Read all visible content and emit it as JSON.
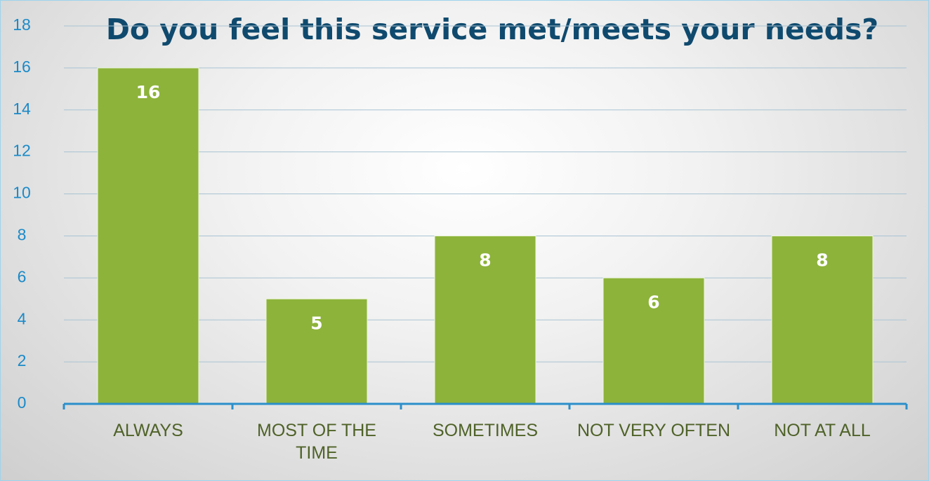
{
  "chart_data": {
    "type": "bar",
    "title": "Do you feel this service met/meets your needs?",
    "categories": [
      "ALWAYS",
      "MOST OF THE TIME",
      "SOMETIMES",
      "NOT VERY OFTEN",
      "NOT AT ALL"
    ],
    "values": [
      16,
      5,
      8,
      6,
      8
    ],
    "color": "#8db33a",
    "ylim": [
      0,
      18
    ],
    "yticks": [
      0,
      2,
      4,
      6,
      8,
      10,
      12,
      14,
      16,
      18
    ],
    "grid": true
  }
}
